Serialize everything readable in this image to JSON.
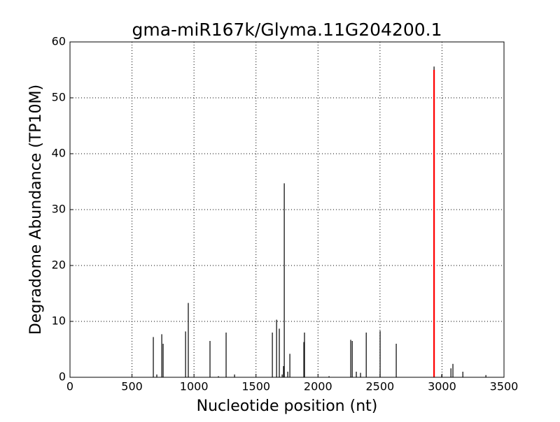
{
  "chart_data": {
    "type": "vlines",
    "title": "gma-miR167k/Glyma.11G204200.1",
    "xlabel": "Nucleotide position (nt)",
    "ylabel": "Degradome Abundance (TP10M)",
    "xlim": [
      0,
      3500
    ],
    "xticks": [
      0,
      500,
      1000,
      1500,
      2000,
      2500,
      3000,
      3500
    ],
    "ylim": [
      0,
      60
    ],
    "yticks": [
      0,
      10,
      20,
      30,
      40,
      50,
      60
    ],
    "grid": true,
    "series": [
      {
        "color": "#000000",
        "x": [
          672,
          700,
          740,
          751,
          932,
          954,
          1129,
          1197,
          1259,
          1327,
          1632,
          1666,
          1688,
          1711,
          1722,
          1728,
          1756,
          1773,
          1886,
          1891,
          2089,
          2264,
          2276,
          2309,
          2343,
          2389,
          2501,
          2631,
          2936,
          2998,
          3072,
          3088,
          3168,
          3354
        ],
        "values": [
          7.2,
          0.5,
          7.7,
          6.0,
          8.2,
          13.3,
          6.5,
          0.2,
          8.0,
          0.5,
          8.0,
          10.3,
          8.7,
          0.5,
          2.0,
          34.7,
          1.0,
          4.2,
          6.3,
          8.0,
          0.2,
          6.7,
          6.5,
          1.0,
          0.8,
          8.0,
          8.3,
          6.0,
          55.6,
          0.5,
          1.6,
          2.4,
          1.0,
          0.4
        ]
      },
      {
        "color": "#ff0000",
        "x": [
          2936
        ],
        "values": [
          55.0
        ]
      }
    ]
  }
}
